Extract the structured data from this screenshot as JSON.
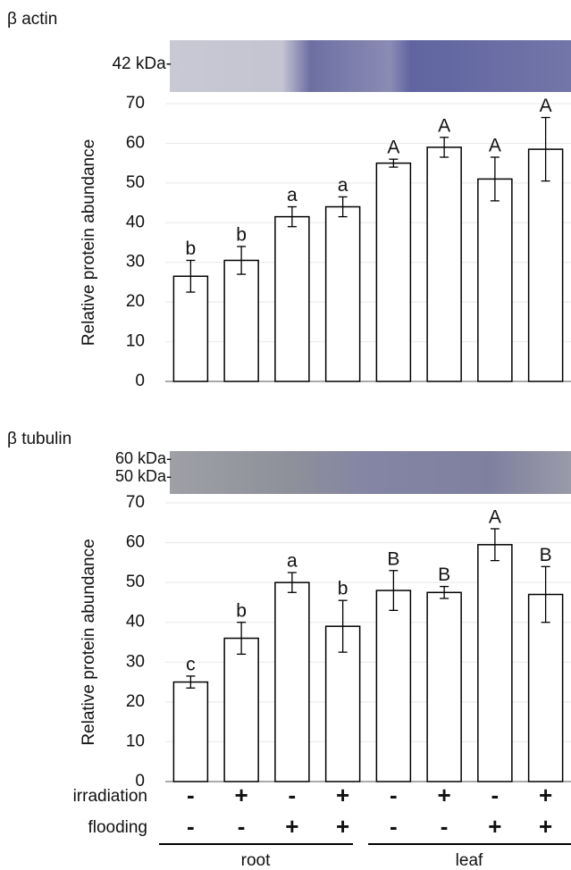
{
  "chart_data": [
    {
      "type": "bar",
      "title": "β actin",
      "blot_labels": [
        "42 kDa-"
      ],
      "ylabel": "Relative protein abundance",
      "values": [
        26.5,
        30.5,
        41.5,
        44,
        55,
        59,
        51,
        58.5
      ],
      "errors": [
        4,
        3.5,
        2.5,
        2.5,
        1,
        2.5,
        5.5,
        8
      ],
      "letters": [
        "b",
        "b",
        "a",
        "a",
        "A",
        "A",
        "A",
        "A"
      ],
      "color": "#ffffff",
      "ylim": [
        0,
        70
      ],
      "yticks": [
        0,
        10,
        20,
        30,
        40,
        50,
        60,
        70
      ],
      "grid": true
    },
    {
      "type": "bar",
      "title": "β tubulin",
      "blot_labels": [
        "60 kDa-",
        "50 kDa-"
      ],
      "ylabel": "Relative protein abundance",
      "values": [
        25,
        36,
        50,
        39,
        48,
        47.5,
        59.5,
        47
      ],
      "errors": [
        1.5,
        4,
        2.5,
        6.5,
        5,
        1.5,
        4,
        7
      ],
      "letters": [
        "c",
        "b",
        "a",
        "b",
        "B",
        "B",
        "A",
        "B"
      ],
      "color": "#ffffff",
      "ylim": [
        0,
        70
      ],
      "yticks": [
        0,
        10,
        20,
        30,
        40,
        50,
        60,
        70
      ],
      "grid": true
    }
  ],
  "treatments": {
    "rows": [
      {
        "label": "irradiation",
        "values": [
          "-",
          "+",
          "-",
          "+",
          "-",
          "+",
          "-",
          "+"
        ]
      },
      {
        "label": "flooding",
        "values": [
          "-",
          "-",
          "+",
          "+",
          "-",
          "-",
          "+",
          "+"
        ]
      }
    ],
    "groups": [
      "root",
      "leaf"
    ]
  }
}
